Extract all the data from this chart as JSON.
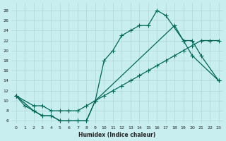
{
  "xlabel": "Humidex (Indice chaleur)",
  "bg_color": "#c8eef0",
  "grid_color": "#b0d8d8",
  "line_color": "#006655",
  "xlim": [
    -0.5,
    23.5
  ],
  "ylim": [
    5.5,
    29.5
  ],
  "xticks": [
    0,
    1,
    2,
    3,
    4,
    5,
    6,
    7,
    8,
    9,
    10,
    11,
    12,
    13,
    14,
    15,
    16,
    17,
    18,
    19,
    20,
    21,
    22,
    23
  ],
  "yticks": [
    6,
    8,
    10,
    12,
    14,
    16,
    18,
    20,
    22,
    24,
    26,
    28
  ],
  "curve_a_x": [
    0,
    1,
    2,
    3,
    4,
    5,
    6,
    7,
    8,
    9,
    10,
    11,
    12,
    13,
    14,
    15,
    16,
    17,
    19,
    20,
    23
  ],
  "curve_a_y": [
    11,
    9,
    8,
    7,
    7,
    6,
    6,
    6,
    6,
    10,
    18,
    20,
    23,
    24,
    25,
    25,
    28,
    27,
    22,
    19,
    14
  ],
  "curve_b_x": [
    0,
    2,
    3,
    4,
    5,
    6,
    7,
    8,
    9,
    10,
    11,
    12,
    13,
    14,
    15,
    16,
    17,
    18,
    19,
    20,
    21,
    22,
    23
  ],
  "curve_b_y": [
    11,
    9,
    9,
    8,
    8,
    8,
    8,
    9,
    10,
    11,
    12,
    13,
    14,
    15,
    16,
    17,
    18,
    19,
    20,
    21,
    22,
    22,
    22
  ],
  "curve_c_x": [
    0,
    2,
    3,
    4,
    5,
    6,
    7,
    8,
    9,
    18,
    19,
    20,
    21,
    23
  ],
  "curve_c_y": [
    11,
    8,
    7,
    7,
    6,
    6,
    6,
    6,
    10,
    25,
    22,
    22,
    19,
    14
  ]
}
